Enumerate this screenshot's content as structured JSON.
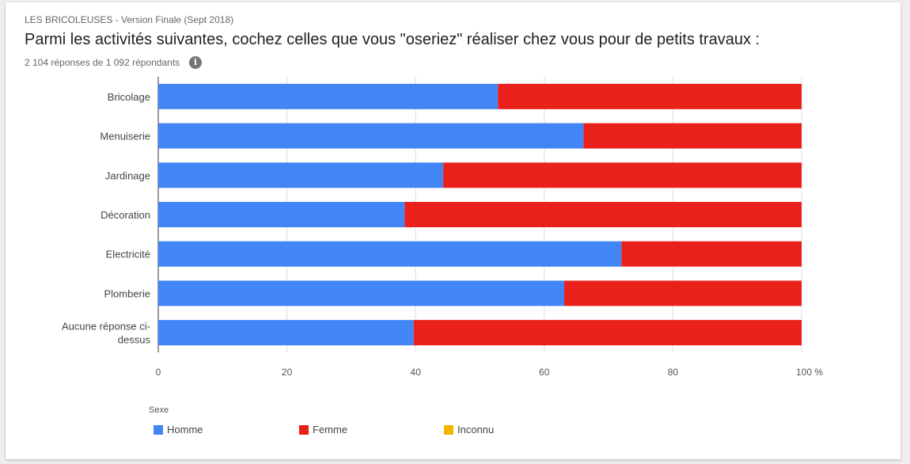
{
  "header": {
    "subtitle": "LES BRICOLEUSES - Version Finale (Sept 2018)",
    "title": "Parmi les activités suivantes, cochez celles que vous \"oseriez\" réaliser chez vous pour de petits travaux :",
    "count": "2 104 réponses de 1 092 répondants",
    "info_icon": "i"
  },
  "chart_data": {
    "type": "bar",
    "stacked": true,
    "orientation": "horizontal",
    "categories": [
      "Bricolage",
      "Menuiserie",
      "Jardinage",
      "Décoration",
      "Electricité",
      "Plomberie",
      "Aucune réponse ci-dessus"
    ],
    "category_lines": [
      [
        "Bricolage"
      ],
      [
        "Menuiserie"
      ],
      [
        "Jardinage"
      ],
      [
        "Décoration"
      ],
      [
        "Electricité"
      ],
      [
        "Plomberie"
      ],
      [
        "Aucune réponse ci-",
        "dessus"
      ]
    ],
    "series": [
      {
        "name": "Homme",
        "color": "#4285f4",
        "values": [
          52.8,
          66.1,
          44.3,
          38.3,
          72.0,
          63.1,
          39.7
        ]
      },
      {
        "name": "Femme",
        "color": "#ea211b",
        "values": [
          47.2,
          33.9,
          55.7,
          61.7,
          28.0,
          36.9,
          60.3
        ]
      },
      {
        "name": "Inconnu",
        "color": "#f4b400",
        "values": [
          0,
          0,
          0,
          0,
          0,
          0,
          0
        ]
      }
    ],
    "xlim": [
      0,
      100
    ],
    "xticks": [
      "0",
      "20",
      "40",
      "60",
      "80",
      "100 %"
    ],
    "legend_title": "Sexe",
    "legend_position": "bottom-left",
    "grid": true
  }
}
